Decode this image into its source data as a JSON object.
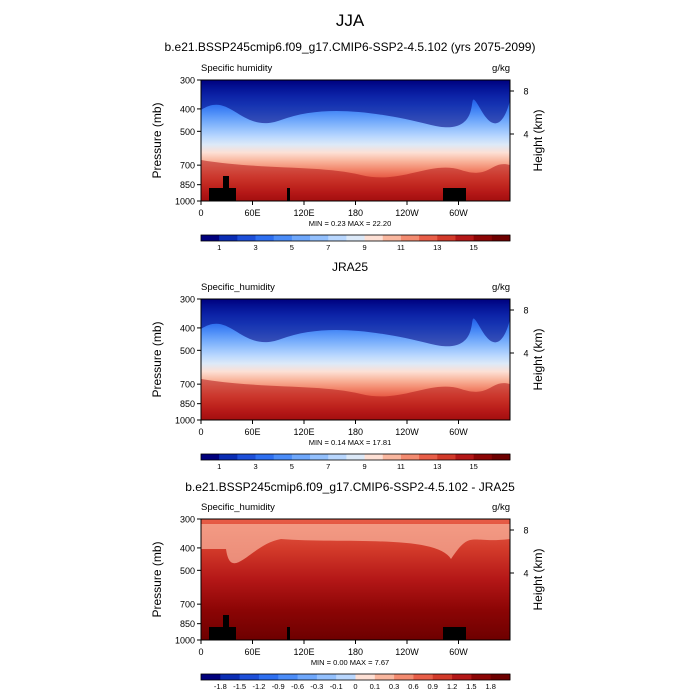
{
  "figure": {
    "main_title": "JJA"
  },
  "chart_data": [
    {
      "type": "heatmap",
      "title": "b.e21.BSSP245cmip6.f09_g17.CMIP6-SSP2-4.5.102 (yrs 2075-2099)",
      "left_label": "Specific humidity",
      "units": "g/kg",
      "ylabel": "Pressure (mb)",
      "ylabel_right": "Height (km)",
      "y_ticks": [
        "300",
        "400",
        "500",
        "700",
        "850",
        "1000"
      ],
      "y_right_ticks": [
        "8",
        "4"
      ],
      "x_ticks": [
        "0",
        "60E",
        "120E",
        "180",
        "120W",
        "60W"
      ],
      "xlim": [
        0,
        360
      ],
      "stats": "MIN =   0.23  MAX =  22.20",
      "colorbar_labels": [
        "1",
        "3",
        "5",
        "7",
        "9",
        "11",
        "13",
        "15"
      ],
      "levels": [
        1,
        2,
        3,
        4,
        5,
        6,
        7,
        8,
        9,
        10,
        11,
        12,
        13,
        14,
        15,
        16
      ],
      "colors": [
        "#00007d",
        "#0a2db4",
        "#1d4fd9",
        "#2e6ff0",
        "#4b8cf7",
        "#6ea7fb",
        "#93c0fd",
        "#b9d7fe",
        "#dce9f8",
        "#fde0d5",
        "#f9b79f",
        "#f38b70",
        "#e85e48",
        "#d23a2a",
        "#b41717",
        "#8c0505",
        "#6e0000"
      ],
      "terrain": true
    },
    {
      "type": "heatmap",
      "title": "JRA25",
      "left_label": "Specific_humidity",
      "units": "g/kg",
      "ylabel": "Pressure (mb)",
      "ylabel_right": "Height (km)",
      "y_ticks": [
        "300",
        "400",
        "500",
        "700",
        "850",
        "1000"
      ],
      "y_right_ticks": [
        "8",
        "4"
      ],
      "x_ticks": [
        "0",
        "60E",
        "120E",
        "180",
        "120W",
        "60W"
      ],
      "xlim": [
        0,
        360
      ],
      "stats": "MIN =   0.14  MAX =  17.81",
      "colorbar_labels": [
        "1",
        "3",
        "5",
        "7",
        "9",
        "11",
        "13",
        "15"
      ],
      "levels": [
        1,
        2,
        3,
        4,
        5,
        6,
        7,
        8,
        9,
        10,
        11,
        12,
        13,
        14,
        15,
        16
      ],
      "colors": [
        "#00007d",
        "#0a2db4",
        "#1d4fd9",
        "#2e6ff0",
        "#4b8cf7",
        "#6ea7fb",
        "#93c0fd",
        "#b9d7fe",
        "#dce9f8",
        "#fde0d5",
        "#f9b79f",
        "#f38b70",
        "#e85e48",
        "#d23a2a",
        "#b41717",
        "#8c0505",
        "#6e0000"
      ],
      "terrain": false
    },
    {
      "type": "heatmap",
      "title": "b.e21.BSSP245cmip6.f09_g17.CMIP6-SSP2-4.5.102 - JRA25",
      "left_label": "Specific_humidity",
      "units": "g/kg",
      "ylabel": "Pressure (mb)",
      "ylabel_right": "Height (km)",
      "y_ticks": [
        "300",
        "400",
        "500",
        "700",
        "850",
        "1000"
      ],
      "y_right_ticks": [
        "8",
        "4"
      ],
      "x_ticks": [
        "0",
        "60E",
        "120E",
        "180",
        "120W",
        "60W"
      ],
      "xlim": [
        0,
        360
      ],
      "stats": "MIN =   0.00  MAX =   7.67",
      "colorbar_labels": [
        "-1.8",
        "-1.5",
        "-1.2",
        "-0.9",
        "-0.6",
        "-0.3",
        "-0.1",
        "0",
        "0.1",
        "0.3",
        "0.6",
        "0.9",
        "1.2",
        "1.5",
        "1.8"
      ],
      "levels": [
        -1.8,
        -1.5,
        -1.2,
        -0.9,
        -0.6,
        -0.3,
        -0.1,
        0,
        0.1,
        0.3,
        0.6,
        0.9,
        1.2,
        1.5,
        1.8
      ],
      "colors": [
        "#00007d",
        "#0a2db4",
        "#1d4fd9",
        "#2e6ff0",
        "#4b8cf7",
        "#6ea7fb",
        "#93c0fd",
        "#b9d7fe",
        "#fde0d5",
        "#f9b79f",
        "#f38b70",
        "#e85e48",
        "#d23a2a",
        "#b41717",
        "#8c0505",
        "#6e0000"
      ],
      "terrain": true
    }
  ]
}
